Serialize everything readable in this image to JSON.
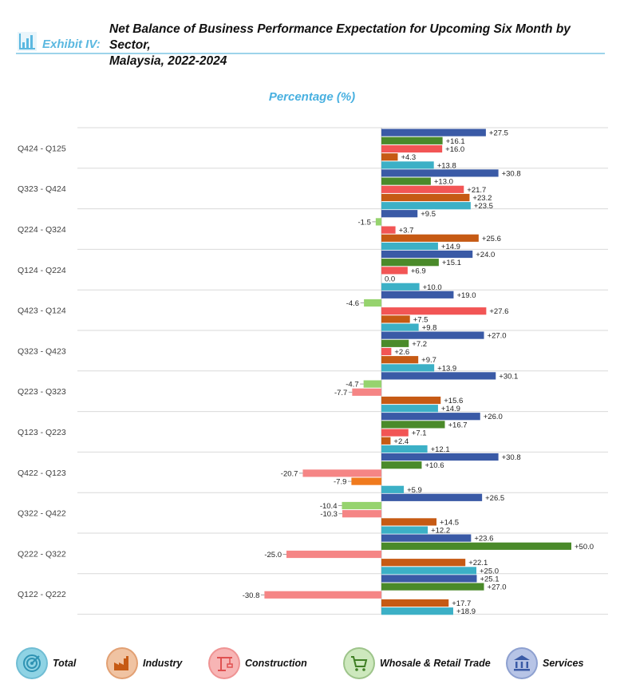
{
  "header": {
    "exhibit_label": "Exhibit IV:",
    "title_line1": "Net Balance of Business Performance Expectation for Upcoming Six Month by Sector,",
    "title_line2": "Malaysia, 2022-2024"
  },
  "chart_data": {
    "type": "bar",
    "orientation": "horizontal",
    "title": "Percentage (%)",
    "xlim": [
      -50,
      50
    ],
    "grid": true,
    "legend_position": "bottom",
    "categories": [
      "Q424 - Q125",
      "Q323 - Q424",
      "Q224 - Q324",
      "Q124 - Q224",
      "Q423 - Q124",
      "Q323 - Q423",
      "Q223 - Q323",
      "Q123 - Q223",
      "Q422 - Q123",
      "Q322 - Q422",
      "Q222 - Q322",
      "Q122 - Q222"
    ],
    "series": [
      {
        "name": "Services",
        "color": "#3a5aa6",
        "values": [
          27.5,
          30.8,
          9.5,
          24.0,
          19.0,
          27.0,
          30.1,
          26.0,
          30.8,
          26.5,
          23.6,
          25.1
        ]
      },
      {
        "name": "Whosale & Retail Trade",
        "color": "#4a8a2a",
        "negative_color": "#96d36e",
        "values": [
          16.1,
          13.0,
          -1.5,
          15.1,
          -4.6,
          7.2,
          -4.7,
          16.7,
          10.6,
          -10.4,
          50.0,
          27.0
        ]
      },
      {
        "name": "Construction",
        "color": "#f25555",
        "negative_color": "#f58585",
        "values": [
          16.0,
          21.7,
          3.7,
          6.9,
          27.6,
          2.6,
          -7.7,
          7.1,
          -20.7,
          -10.3,
          -25.0,
          -30.8
        ]
      },
      {
        "name": "Industry",
        "color": "#c65a14",
        "negative_color": "#f07a1e",
        "values": [
          4.3,
          23.2,
          25.6,
          0.0,
          7.5,
          9.7,
          15.6,
          2.4,
          -7.9,
          14.5,
          22.1,
          17.7
        ]
      },
      {
        "name": "Total",
        "color": "#3cb0c6",
        "values": [
          13.8,
          23.5,
          14.9,
          10.0,
          9.8,
          13.9,
          14.9,
          12.1,
          5.9,
          12.2,
          25.0,
          18.9
        ]
      }
    ],
    "data_labels": [
      [
        "+27.5",
        "+16.1",
        "+16.0",
        "+4.3",
        "+13.8"
      ],
      [
        "+30.8",
        "+13.0",
        "+21.7",
        "+23.2",
        "+23.5"
      ],
      [
        "+9.5",
        "-1.5",
        "+3.7",
        "+25.6",
        "+14.9"
      ],
      [
        "+24.0",
        "+15.1",
        "+6.9",
        "0.0",
        "+10.0"
      ],
      [
        "+19.0",
        "-4.6",
        "+27.6",
        "+7.5",
        "+9.8"
      ],
      [
        "+27.0",
        "+7.2",
        "+2.6",
        "+9.7",
        "+13.9"
      ],
      [
        "+30.1",
        "-4.7",
        "-7.7",
        "+15.6",
        "+14.9"
      ],
      [
        "+26.0",
        "+16.7",
        "+7.1",
        "+2.4",
        "+12.1"
      ],
      [
        "+30.8",
        "+10.6",
        "-20.7",
        "-7.9",
        "+5.9"
      ],
      [
        "+26.5",
        "-10.4",
        "-10.3",
        "+14.5",
        "+12.2"
      ],
      [
        "+23.6",
        "+50.0",
        "-25.0",
        "+22.1",
        "+25.0"
      ],
      [
        "+25.1",
        "+27.0",
        "-30.8",
        "+17.7",
        "+18.9"
      ]
    ]
  },
  "legend": [
    {
      "label": "Total",
      "icon": "target-icon",
      "bg": "#8fd3e4",
      "fg": "#2f93b3"
    },
    {
      "label": "Industry",
      "icon": "factory-icon",
      "bg": "#f0c3a2",
      "fg": "#c65a14"
    },
    {
      "label": "Construction",
      "icon": "crane-icon",
      "bg": "#f7b5b5",
      "fg": "#e05050"
    },
    {
      "label": "Whosale & Retail Trade",
      "icon": "cart-icon",
      "bg": "#cde8bd",
      "fg": "#3f7f24"
    },
    {
      "label": "Services",
      "icon": "bank-icon",
      "bg": "#b7c4e6",
      "fg": "#3a5aa6"
    }
  ]
}
